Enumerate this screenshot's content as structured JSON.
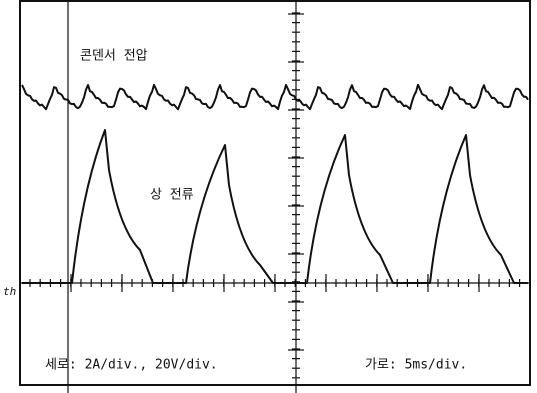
{
  "labels": {
    "voltage": "콘덴서 전압",
    "current": "상 전류",
    "vertical_scale": "세로: 2A/div., 20V/div.",
    "horizontal_scale": "가로: 5ms/div.",
    "ground_marker": "th"
  }
}
